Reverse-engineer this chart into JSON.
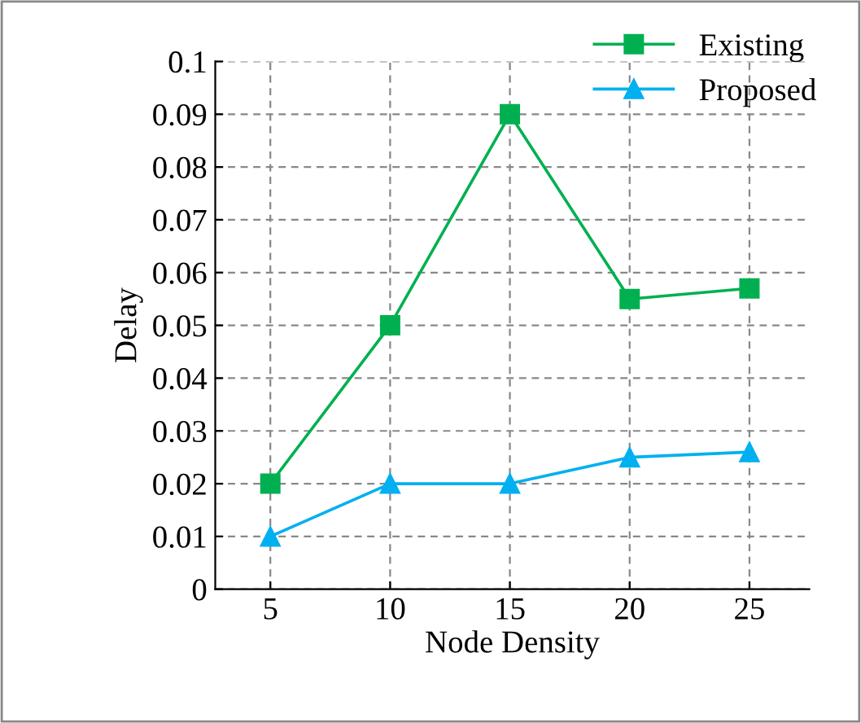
{
  "chart_data": {
    "type": "line",
    "xlabel": "Node Density",
    "ylabel": "Delay",
    "x": [
      5,
      10,
      15,
      20,
      25
    ],
    "series": [
      {
        "name": "Existing",
        "color": "#00b050",
        "marker": "square",
        "values": [
          0.02,
          0.05,
          0.09,
          0.055,
          0.057
        ]
      },
      {
        "name": "Proposed",
        "color": "#00b0f0",
        "marker": "triangle",
        "values": [
          0.01,
          0.02,
          0.02,
          0.025,
          0.026
        ]
      }
    ],
    "xlim": [
      2.7,
      27.5
    ],
    "xticks": [
      5,
      10,
      15,
      20,
      25
    ],
    "ylim": [
      0,
      0.1
    ],
    "yticks": [
      0,
      0.01,
      0.02,
      0.03,
      0.04,
      0.05,
      0.06,
      0.07,
      0.08,
      0.09,
      0.1
    ],
    "grid": true,
    "legend": "top right"
  }
}
